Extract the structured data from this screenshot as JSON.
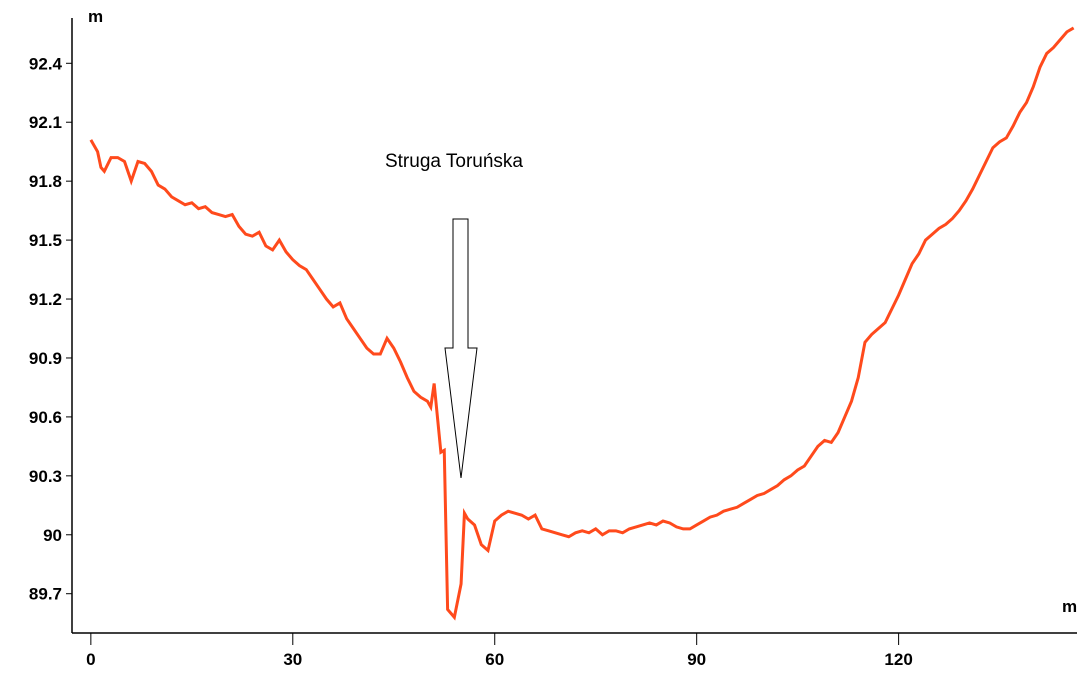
{
  "chart_data": {
    "type": "line",
    "y_label": "m",
    "x_label": "m",
    "annotation": "Struga Toruńska",
    "color": "#ff4a1c",
    "xlim": [
      -2.8,
      146.5
    ],
    "ylim": [
      89.5,
      92.6
    ],
    "xticks": [
      0,
      30,
      60,
      90,
      120
    ],
    "yticks": [
      89.7,
      90,
      90.3,
      90.6,
      90.9,
      91.2,
      91.5,
      91.8,
      92.1,
      92.4
    ],
    "x": [
      0,
      1,
      1.5,
      2,
      3,
      4,
      5,
      6,
      7,
      8,
      9,
      10,
      11,
      12,
      13,
      14,
      15,
      16,
      17,
      18,
      19,
      20,
      21,
      22,
      23,
      24,
      25,
      26,
      27,
      28,
      29,
      30,
      31,
      32,
      33,
      34,
      35,
      36,
      37,
      38,
      39,
      40,
      41,
      42,
      43,
      44,
      45,
      46,
      47,
      48,
      49,
      50,
      50.5,
      51,
      52,
      52.5,
      53,
      53.5,
      54,
      55,
      55.5,
      56,
      57,
      58,
      59,
      60,
      61,
      62,
      63,
      64,
      65,
      66,
      67,
      68,
      69,
      70,
      71,
      72,
      73,
      74,
      75,
      76,
      77,
      78,
      79,
      80,
      81,
      82,
      83,
      84,
      85,
      86,
      87,
      88,
      89,
      90,
      91,
      92,
      93,
      94,
      95,
      96,
      97,
      98,
      99,
      100,
      101,
      102,
      103,
      104,
      105,
      106,
      107,
      108,
      109,
      110,
      111,
      112,
      113,
      114,
      115,
      116,
      117,
      118,
      119,
      120,
      121,
      122,
      123,
      124,
      125,
      126,
      127,
      128,
      129,
      130,
      131,
      132,
      133,
      134,
      135,
      136,
      137,
      138,
      139,
      140,
      141,
      142,
      143,
      144,
      145,
      146
    ],
    "values": [
      92.01,
      91.95,
      91.87,
      91.85,
      91.92,
      91.92,
      91.9,
      91.8,
      91.9,
      91.89,
      91.85,
      91.78,
      91.76,
      91.72,
      91.7,
      91.68,
      91.69,
      91.66,
      91.67,
      91.64,
      91.63,
      91.62,
      91.63,
      91.57,
      91.53,
      91.52,
      91.54,
      91.47,
      91.45,
      91.5,
      91.44,
      91.4,
      91.37,
      91.35,
      91.3,
      91.25,
      91.2,
      91.16,
      91.18,
      91.1,
      91.05,
      91.0,
      90.95,
      90.92,
      90.92,
      91.0,
      90.95,
      90.88,
      90.8,
      90.73,
      90.7,
      90.68,
      90.65,
      90.77,
      90.42,
      90.43,
      89.62,
      89.6,
      89.58,
      89.75,
      90.11,
      90.08,
      90.05,
      89.95,
      89.92,
      90.07,
      90.1,
      90.12,
      90.11,
      90.1,
      90.08,
      90.1,
      90.03,
      90.02,
      90.01,
      90.0,
      89.99,
      90.01,
      90.02,
      90.01,
      90.03,
      90.0,
      90.02,
      90.02,
      90.01,
      90.03,
      90.04,
      90.05,
      90.06,
      90.05,
      90.07,
      90.06,
      90.04,
      90.03,
      90.03,
      90.05,
      90.07,
      90.09,
      90.1,
      90.12,
      90.13,
      90.14,
      90.16,
      90.18,
      90.2,
      90.21,
      90.23,
      90.25,
      90.28,
      90.3,
      90.33,
      90.35,
      90.4,
      90.45,
      90.48,
      90.47,
      90.52,
      90.6,
      90.68,
      90.8,
      90.98,
      91.02,
      91.05,
      91.08,
      91.15,
      91.22,
      91.3,
      91.38,
      91.43,
      91.5,
      91.53,
      91.56,
      91.58,
      91.61,
      91.65,
      91.7,
      91.76,
      91.83,
      91.9,
      91.97,
      92.0,
      92.02,
      92.08,
      92.15,
      92.2,
      92.28,
      92.38,
      92.45,
      92.48,
      92.52,
      92.56,
      92.58
    ]
  }
}
